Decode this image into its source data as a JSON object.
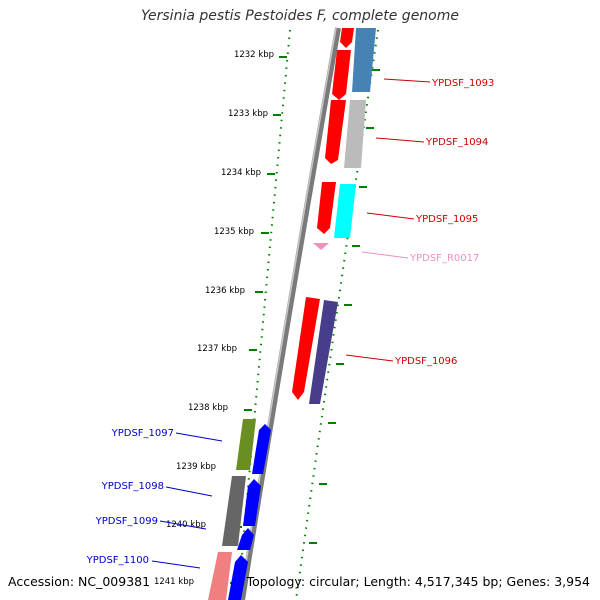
{
  "title": "Yersinia pestis Pestoides F, complete genome",
  "accession": "Accession: NC_009381",
  "topology": "Topology: circular; Length: 4,517,345 bp; Genes: 3,954",
  "colors": {
    "tick": "#008000",
    "backbone": "#888888",
    "feature_cds": "#ff0000",
    "label_right": "#cc0000",
    "label_left": "#0000cc",
    "label_rna": "#f090c0"
  },
  "kbp_ticks": [
    "1232 kbp",
    "1233 kbp",
    "1234 kbp",
    "1235 kbp",
    "1236 kbp",
    "1237 kbp",
    "1238 kbp",
    "1239 kbp",
    "1240 kbp",
    "1241 kbp"
  ],
  "features_right": [
    {
      "label": "YPDSF_1093",
      "color": "#cc0000"
    },
    {
      "label": "YPDSF_1094",
      "color": "#cc0000"
    },
    {
      "label": "YPDSF_1095",
      "color": "#cc0000"
    },
    {
      "label": "YPDSF_R0017",
      "color": "#f090c0"
    },
    {
      "label": "YPDSF_1096",
      "color": "#cc0000"
    }
  ],
  "features_left": [
    {
      "label": "YPDSF_1097",
      "color": "#0000cc"
    },
    {
      "label": "YPDSF_1098",
      "color": "#0000cc"
    },
    {
      "label": "YPDSF_1099",
      "color": "#0000cc"
    },
    {
      "label": "YPDSF_1100",
      "color": "#0000cc"
    }
  ]
}
